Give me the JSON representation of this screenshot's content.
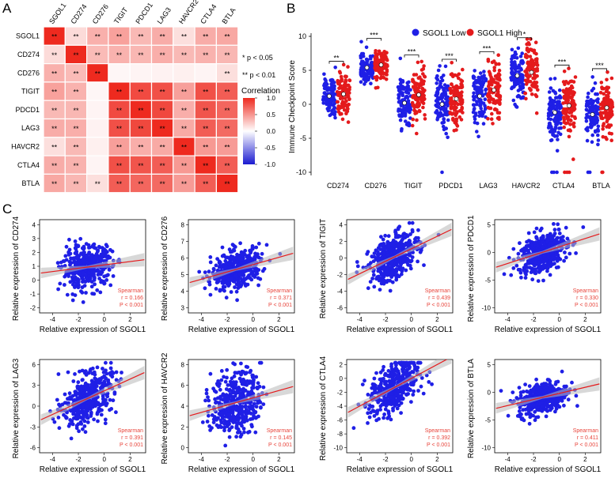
{
  "panels": {
    "a": "A",
    "b": "B",
    "c": "C"
  },
  "colors": {
    "red": "#e41a1c",
    "blue": "#1f1fe6",
    "heat_high": "#ee2a1f",
    "heat_mid": "#ffffff",
    "heat_low": "#1a1ad0",
    "grid_line": "#ffffff",
    "stat_red": "#e8453c",
    "trend_band": "#b8b8b8"
  },
  "chart_data": [
    {
      "id": "heatmap",
      "type": "heatmap",
      "genes": [
        "SGOL1",
        "CD274",
        "CD276",
        "TIGIT",
        "PDCD1",
        "LAG3",
        "HAVCR2",
        "CTLA4",
        "BTLA"
      ],
      "matrix": [
        [
          1.0,
          0.17,
          0.37,
          0.44,
          0.33,
          0.39,
          0.15,
          0.39,
          0.41
        ],
        [
          0.17,
          1.0,
          0.32,
          0.36,
          0.34,
          0.38,
          0.33,
          0.36,
          0.34
        ],
        [
          0.37,
          0.32,
          1.0,
          0.04,
          0.05,
          0.06,
          0.07,
          0.05,
          0.15
        ],
        [
          0.44,
          0.36,
          0.04,
          1.0,
          0.85,
          0.82,
          0.45,
          0.82,
          0.76
        ],
        [
          0.33,
          0.34,
          0.05,
          0.85,
          1.0,
          0.86,
          0.38,
          0.8,
          0.72
        ],
        [
          0.39,
          0.38,
          0.06,
          0.82,
          0.86,
          1.0,
          0.4,
          0.76,
          0.7
        ],
        [
          0.15,
          0.33,
          0.07,
          0.45,
          0.38,
          0.4,
          1.0,
          0.48,
          0.47
        ],
        [
          0.39,
          0.36,
          0.05,
          0.82,
          0.8,
          0.76,
          0.48,
          1.0,
          0.76
        ],
        [
          0.41,
          0.34,
          0.15,
          0.76,
          0.72,
          0.7,
          0.47,
          0.76,
          1.0
        ]
      ],
      "stars": [
        [
          "**",
          "**",
          "**",
          "**",
          "**",
          "**",
          "**",
          "**",
          "**"
        ],
        [
          "**",
          "**",
          "**",
          "**",
          "**",
          "**",
          "**",
          "**",
          "**"
        ],
        [
          "**",
          "**",
          "**",
          "",
          "",
          "",
          "",
          "",
          "**"
        ],
        [
          "**",
          "**",
          "",
          "**",
          "**",
          "**",
          "**",
          "**",
          "**"
        ],
        [
          "**",
          "**",
          "",
          "**",
          "**",
          "**",
          "**",
          "**",
          "**"
        ],
        [
          "**",
          "**",
          "",
          "**",
          "**",
          "**",
          "**",
          "**",
          "**"
        ],
        [
          "**",
          "**",
          "",
          "**",
          "**",
          "**",
          "**",
          "**",
          "**"
        ],
        [
          "**",
          "**",
          "",
          "**",
          "**",
          "**",
          "**",
          "**",
          "**"
        ],
        [
          "**",
          "**",
          "**",
          "**",
          "**",
          "**",
          "**",
          "**",
          "**"
        ]
      ],
      "significance_notes": [
        "* p < 0.05",
        "** p < 0.01"
      ],
      "colorbar": {
        "title": "Correlation",
        "ticks": [
          "1.0",
          "0.5",
          "0.0",
          "-0.5",
          "-1.0"
        ],
        "range": [
          -1,
          1
        ]
      }
    },
    {
      "id": "boxplot",
      "type": "scatter",
      "ylabel": "Immune Checkpoint Score",
      "ylim": [
        -10,
        10
      ],
      "yticks": [
        "10",
        "5",
        "0",
        "-5",
        "-10"
      ],
      "categories": [
        "CD274",
        "CD276",
        "TIGIT",
        "PDCD1",
        "LAG3",
        "HAVCR2",
        "CTLA4",
        "BTLA"
      ],
      "series": [
        {
          "name": "SGOL1 Low",
          "medians": [
            1.2,
            5.4,
            0.2,
            0.0,
            1.2,
            4.2,
            -1.2,
            -1.5
          ],
          "spreads": [
            1.6,
            1.0,
            2.0,
            2.1,
            2.1,
            1.9,
            2.0,
            1.7
          ]
        },
        {
          "name": "SGOL1 High",
          "medians": [
            1.5,
            5.8,
            1.4,
            0.8,
            2.1,
            4.7,
            -0.2,
            -0.5
          ],
          "spreads": [
            1.7,
            1.0,
            2.0,
            2.2,
            2.2,
            2.0,
            2.1,
            1.8
          ]
        }
      ],
      "significance": [
        "**",
        "***",
        "***",
        "***",
        "***",
        "*",
        "***",
        "***"
      ]
    }
  ],
  "scatter_panels": [
    {
      "gene": "CD274",
      "ylabel": "Relative expression of CD274",
      "xlabel": "Relative expression of SGOL1",
      "stat": "Spearman",
      "r": "r = 0.166",
      "p": "P < 0.001",
      "yticks": [
        "4",
        "3",
        "2",
        "1",
        "0",
        "-1",
        "-2"
      ],
      "xticks": [
        "-4",
        "-2",
        "0",
        "2"
      ],
      "slope": 0.12,
      "intercept": 1.1,
      "noise": 0.75
    },
    {
      "gene": "CD276",
      "ylabel": "Relative expression of CD276",
      "xlabel": "Relative expression of SGOL1",
      "stat": "Spearman",
      "r": "r = 0.371",
      "p": "P < 0.001",
      "yticks": [
        "8",
        "7",
        "6",
        "5",
        "4",
        "3"
      ],
      "xticks": [
        "-4",
        "-2",
        "0",
        "2"
      ],
      "slope": 0.22,
      "intercept": 5.6,
      "noise": 0.55
    },
    {
      "gene": "TIGIT",
      "ylabel": "Relative expression of TIGIT",
      "xlabel": "Relative expression of SGOL1",
      "stat": "Spearman",
      "r": "r = 0.439",
      "p": "P < 0.001",
      "yticks": [
        "4",
        "2",
        "0",
        "-2",
        "-4",
        "-6"
      ],
      "xticks": [
        "-4",
        "-2",
        "0",
        "2"
      ],
      "slope": 0.75,
      "intercept": 1.1,
      "noise": 1.3
    },
    {
      "gene": "PDCD1",
      "ylabel": "Relative expression of PDCD1",
      "xlabel": "Relative expression of SGOL1",
      "stat": "Spearman",
      "r": "r = 0.330",
      "p": "P < 0.001",
      "yticks": [
        "5",
        "0",
        "-5",
        "-10"
      ],
      "xticks": [
        "-4",
        "-2",
        "0",
        "2"
      ],
      "slope": 0.75,
      "intercept": 1.0,
      "noise": 1.8
    },
    {
      "gene": "LAG3",
      "ylabel": "Relative expression of LAG3",
      "xlabel": "Relative expression of SGOL1",
      "stat": "Spearman",
      "r": "r = 0.391",
      "p": "P < 0.001",
      "yticks": [
        "6",
        "3",
        "0",
        "-3",
        "-6"
      ],
      "xticks": [
        "-4",
        "-2",
        "0",
        "2"
      ],
      "slope": 0.85,
      "intercept": 2.2,
      "noise": 1.7
    },
    {
      "gene": "HAVCR2",
      "ylabel": "Relative expression of HAVCR2",
      "xlabel": "Relative expression of SGOL1",
      "stat": "Spearman",
      "r": "r = 0.145",
      "p": "P < 0.001",
      "yticks": [
        "8",
        "6",
        "4",
        "2",
        "0"
      ],
      "xticks": [
        "-4",
        "-2",
        "0",
        "2"
      ],
      "slope": 0.35,
      "intercept": 4.8,
      "noise": 1.5
    },
    {
      "gene": "CTLA4",
      "ylabel": "Relative expression of CTLA4",
      "xlabel": "Relative expression of SGOL1",
      "stat": "Spearman",
      "r": "r = 0.392",
      "p": "P < 0.001",
      "yticks": [
        "2",
        "0",
        "-2",
        "-4",
        "-6",
        "-8",
        "-10"
      ],
      "xticks": [
        "-4",
        "-2",
        "0",
        "2"
      ],
      "slope": 1.0,
      "intercept": 0.0,
      "noise": 1.8
    },
    {
      "gene": "BTLA",
      "ylabel": "Relative expression of BTLA",
      "xlabel": "Relative expression of SGOL1",
      "stat": "Spearman",
      "r": "r = 0.411",
      "p": "P < 0.001",
      "yticks": [
        "5",
        "0",
        "-5",
        "-10"
      ],
      "xticks": [
        "-4",
        "-2",
        "0",
        "2"
      ],
      "slope": 0.55,
      "intercept": -0.2,
      "noise": 1.4
    }
  ]
}
